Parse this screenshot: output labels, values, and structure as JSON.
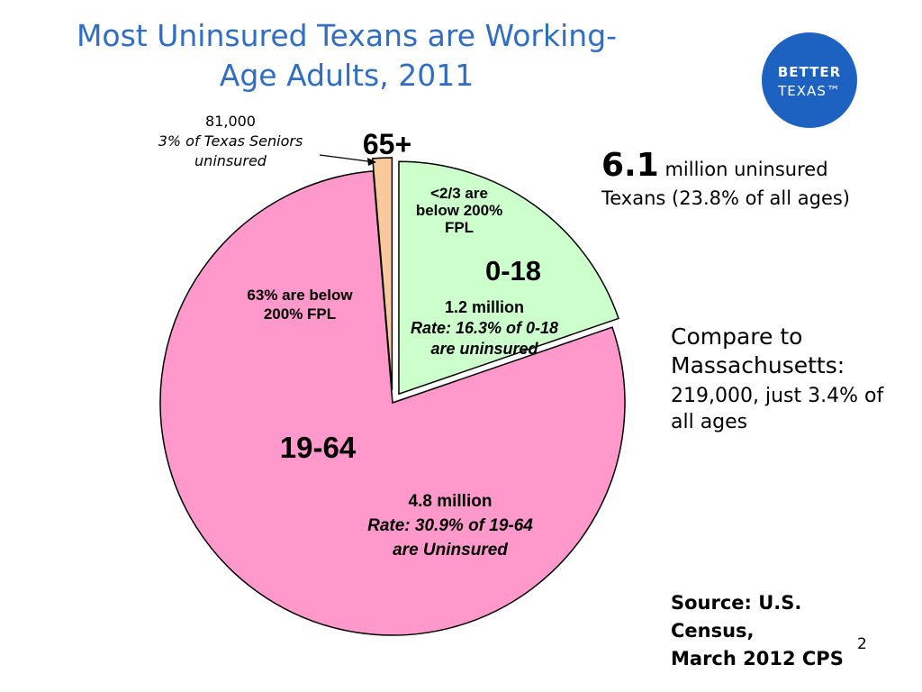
{
  "slide": {
    "title_lines": [
      "Most Uninsured Texans are Working-",
      "Age Adults, 2011"
    ],
    "logo": {
      "line1": "BETTER",
      "line2": "TEXAS™"
    },
    "summary": {
      "number": "6.1",
      "line1_rest": "million uninsured",
      "line2": "Texans (23.8% of all ages)"
    },
    "compare": {
      "heading_lines": [
        "Compare to",
        "Massachusetts:"
      ],
      "body_lines": [
        "219,000, just 3.4% of",
        "all ages"
      ]
    },
    "source_lines": [
      "Source: U.S. Census,",
      "March 2012 CPS"
    ],
    "page_number": "2"
  },
  "chart_data": {
    "type": "pie",
    "title": "Most Uninsured Texans are Working-Age Adults, 2011",
    "total_label": "6.1 million uninsured Texans (23.8% of all ages)",
    "slices": [
      {
        "label": "65+",
        "value": 0.081,
        "color": "#f9c99b",
        "notes": [
          "81,000",
          "3% of Texas Seniors",
          "uninsured"
        ]
      },
      {
        "label": "0-18",
        "value": 1.2,
        "color": "#ccffcc",
        "notes": [
          "<2/3 are",
          "below 200%",
          "FPL"
        ],
        "stats": [
          "1.2 million",
          "Rate: 16.3% of 0-18",
          "are uninsured"
        ]
      },
      {
        "label": "19-64",
        "value": 4.8,
        "color": "#ff99cc",
        "notes": [
          "63% are below",
          "200% FPL"
        ],
        "stats": [
          "4.8 million",
          "Rate: 30.9% of 19-64",
          "are Uninsured"
        ]
      }
    ]
  }
}
